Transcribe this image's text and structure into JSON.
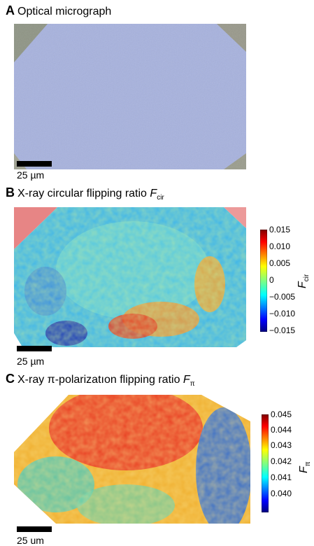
{
  "panels": {
    "A": {
      "letter": "A",
      "title": "Optical micrograph",
      "scale_label": "25 µm"
    },
    "B": {
      "letter": "B",
      "title": "X-ray circular flipping ratio ",
      "symbol": "F",
      "symbol_sub": "cir",
      "scale_label": "25 µm",
      "colorbar": {
        "ticks": [
          "0.015",
          "0.010",
          "0.005",
          "0",
          "−0.005",
          "−0.010",
          "−0.015"
        ],
        "label": "F",
        "label_sub": "cir"
      }
    },
    "C": {
      "letter": "C",
      "title": "X-ray π-polarizatıon flipping ratio ",
      "symbol": "F",
      "symbol_sub": "π",
      "scale_label": "25 um",
      "colorbar": {
        "ticks": [
          "0.045",
          "0.044",
          "0.043",
          "0.042",
          "0.041",
          "0.040"
        ],
        "label": "F",
        "label_sub": "π"
      }
    }
  },
  "colors": {
    "optical_crystal": "#a7b2de",
    "optical_background": "#9c9e8e",
    "map_red": "#d42020",
    "map_blue": "#1a1aa8",
    "map_green": "#90dc70"
  }
}
